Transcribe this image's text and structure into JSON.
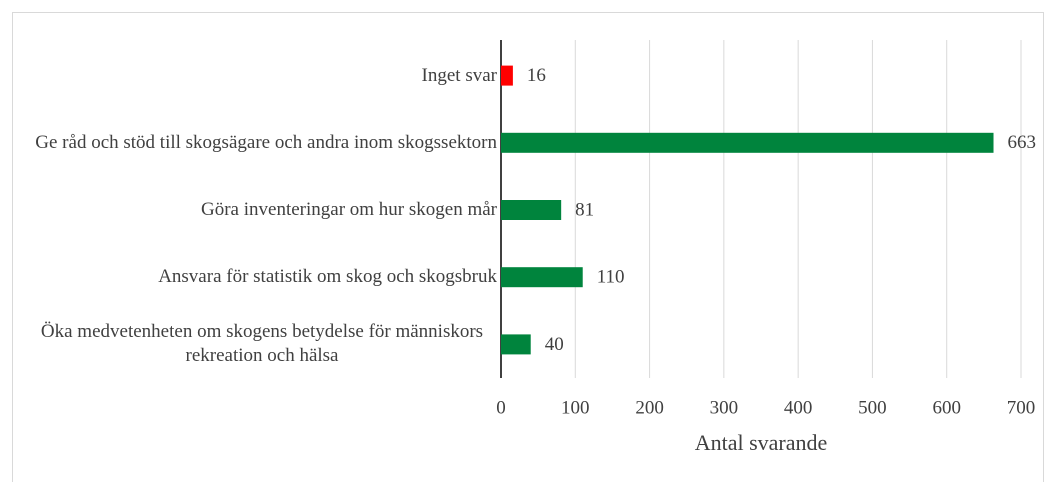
{
  "chart_data": {
    "type": "hbar",
    "categories": [
      "Inget svar",
      "Ge råd och stöd till skogsägare och andra inom skogssektorn",
      "Göra inventeringar om hur skogen mår",
      "Ansvara för statistik om skog och skogsbruk",
      "Öka medvetenheten om skogens betydelse för människors rekreation och hälsa"
    ],
    "values": [
      16,
      663,
      81,
      110,
      40
    ],
    "colors": [
      "#ff0000",
      "#00843d",
      "#00843d",
      "#00843d",
      "#00843d"
    ],
    "xlabel": "Antal svarande",
    "xlim": [
      0,
      700
    ],
    "xticks": [
      0,
      100,
      200,
      300,
      400,
      500,
      600,
      700
    ],
    "grid": true
  }
}
